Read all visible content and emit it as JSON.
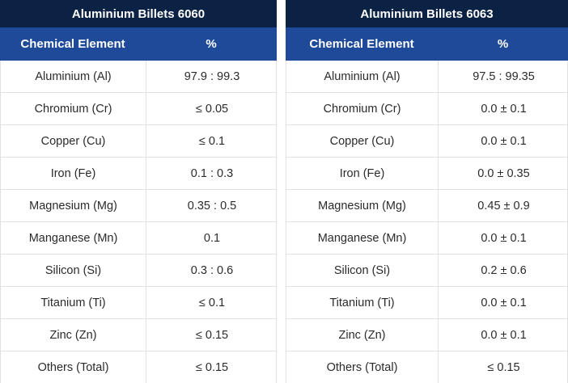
{
  "tables": [
    {
      "title": "Aluminium Billets 6060",
      "headers": [
        "Chemical Element",
        "%"
      ],
      "rows": [
        [
          "Aluminium (Al)",
          "97.9 : 99.3"
        ],
        [
          "Chromium (Cr)",
          "≤ 0.05"
        ],
        [
          "Copper (Cu)",
          "≤ 0.1"
        ],
        [
          "Iron (Fe)",
          "0.1 : 0.3"
        ],
        [
          "Magnesium (Mg)",
          "0.35 : 0.5"
        ],
        [
          "Manganese (Mn)",
          "0.1"
        ],
        [
          "Silicon (Si)",
          "0.3 : 0.6"
        ],
        [
          "Titanium (Ti)",
          "≤ 0.1"
        ],
        [
          "Zinc (Zn)",
          "≤ 0.15"
        ],
        [
          "Others (Total)",
          "≤ 0.15"
        ]
      ]
    },
    {
      "title": "Aluminium Billets 6063",
      "headers": [
        "Chemical Element",
        "%"
      ],
      "rows": [
        [
          "Aluminium (Al)",
          "97.5 : 99.35"
        ],
        [
          "Chromium (Cr)",
          "0.0 ± 0.1"
        ],
        [
          "Copper (Cu)",
          "0.0 ± 0.1"
        ],
        [
          "Iron (Fe)",
          "0.0 ± 0.35"
        ],
        [
          "Magnesium (Mg)",
          "0.45 ± 0.9"
        ],
        [
          "Manganese (Mn)",
          "0.0 ± 0.1"
        ],
        [
          "Silicon (Si)",
          "0.2 ± 0.6"
        ],
        [
          "Titanium (Ti)",
          "0.0 ± 0.1"
        ],
        [
          "Zinc (Zn)",
          "0.0 ± 0.1"
        ],
        [
          "Others (Total)",
          "≤ 0.15"
        ]
      ]
    }
  ],
  "colors": {
    "title_bg": "#0c2244",
    "header_bg": "#1f4a9a",
    "border": "#e2e2e2"
  }
}
